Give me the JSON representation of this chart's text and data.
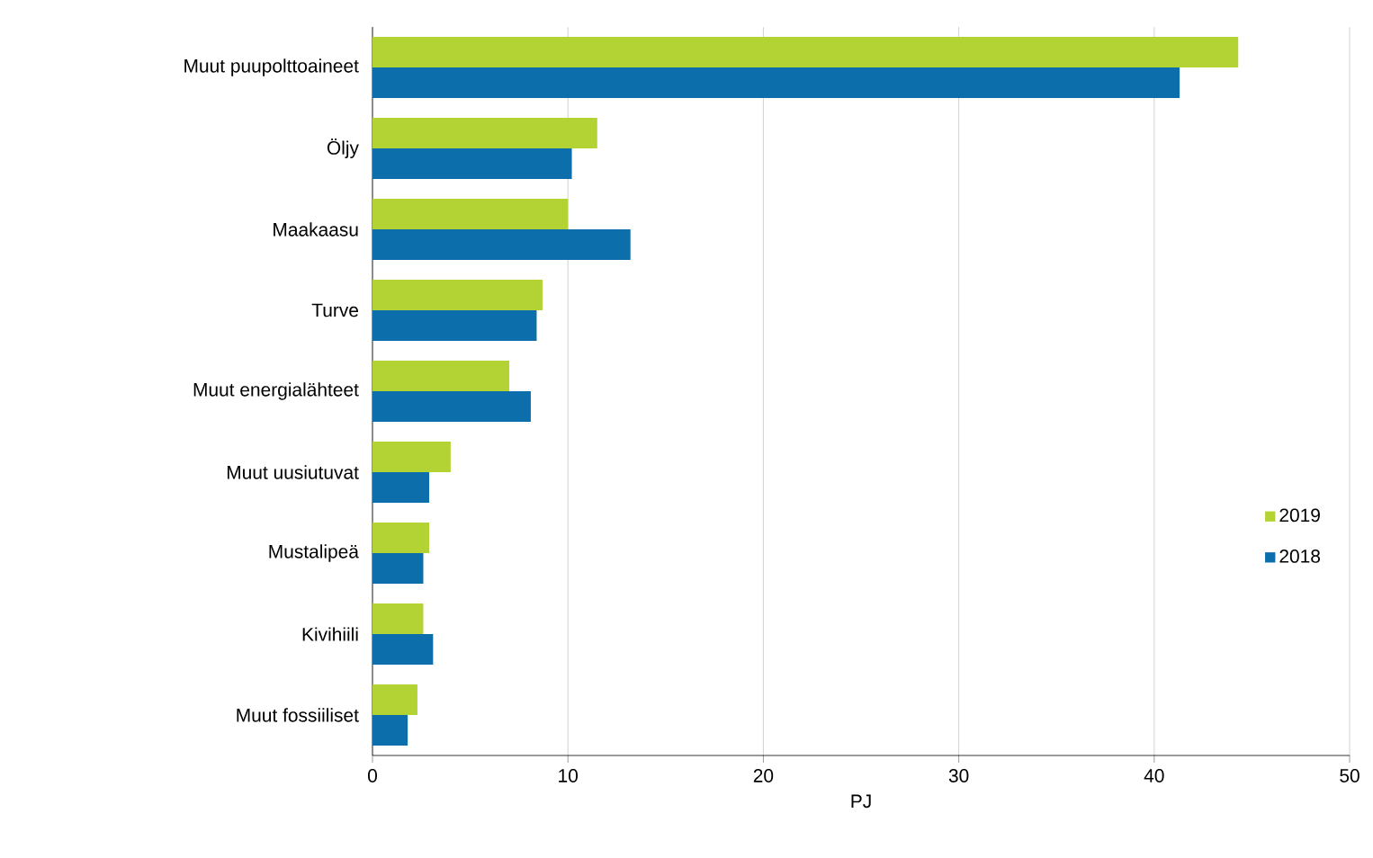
{
  "chart_data": {
    "type": "bar",
    "orientation": "horizontal",
    "xlabel": "PJ",
    "categories": [
      "Muut puupolttoaineet",
      "Öljy",
      "Maakaasu",
      "Turve",
      "Muut energialähteet",
      "Muut uusiutuvat",
      "Mustalipeä",
      "Kivihiili",
      "Muut fossiiliset"
    ],
    "series": [
      {
        "name": "2019",
        "color": "#b3d334",
        "values": [
          44.3,
          11.5,
          10.0,
          8.7,
          7.0,
          4.0,
          2.9,
          2.6,
          2.3
        ]
      },
      {
        "name": "2018",
        "color": "#0c6eaa",
        "values": [
          41.3,
          10.2,
          13.2,
          8.4,
          8.1,
          2.9,
          2.6,
          3.1,
          1.8
        ]
      }
    ],
    "xlim": [
      0,
      50
    ],
    "xticks": [
      0,
      10,
      20,
      30,
      40,
      50
    ],
    "grid": "x",
    "legend": "right"
  }
}
